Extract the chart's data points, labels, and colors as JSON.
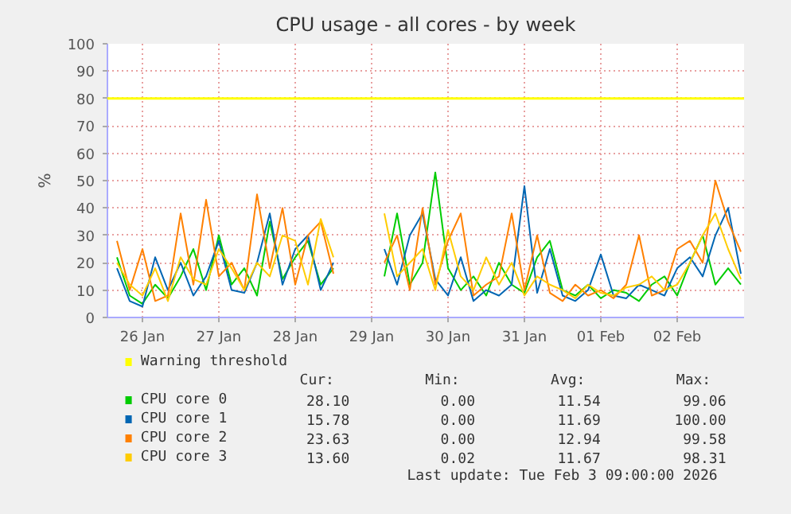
{
  "chart_data": {
    "type": "line",
    "title": "CPU usage - all cores - by week",
    "ylabel": "%",
    "x": [
      "2026-01-26T04:00",
      "2026-01-26T08:00",
      "2026-01-26T12:00",
      "2026-01-26T16:00",
      "2026-01-26T20:00",
      "2026-01-27T00:00",
      "2026-01-27T04:00",
      "2026-01-27T08:00",
      "2026-01-27T12:00",
      "2026-01-27T16:00",
      "2026-01-27T20:00",
      "2026-01-28T00:00",
      "2026-01-28T04:00",
      "2026-01-28T08:00",
      "2026-01-28T12:00",
      "2026-01-28T16:00",
      "2026-01-28T20:00",
      "2026-01-29T00:00",
      "2026-01-29T04:00",
      "2026-01-29T08:00",
      "2026-01-29T12:00",
      "2026-01-29T16:00",
      "2026-01-29T20:00",
      "2026-01-30T00:00",
      "2026-01-30T04:00",
      "2026-01-30T08:00",
      "2026-01-30T12:00",
      "2026-01-30T16:00",
      "2026-01-30T20:00",
      "2026-01-31T00:00",
      "2026-01-31T04:00",
      "2026-01-31T08:00",
      "2026-01-31T12:00",
      "2026-01-31T16:00",
      "2026-01-31T20:00",
      "2026-02-01T00:00",
      "2026-02-01T04:00",
      "2026-02-01T08:00",
      "2026-02-01T12:00",
      "2026-02-01T16:00",
      "2026-02-01T20:00",
      "2026-02-02T00:00",
      "2026-02-02T04:00",
      "2026-02-02T08:00",
      "2026-02-02T12:00",
      "2026-02-02T16:00",
      "2026-02-02T20:00",
      "2026-02-03T00:00",
      "2026-02-03T04:00",
      "2026-02-03T08:00"
    ],
    "series": [
      {
        "name": "CPU core 0",
        "color": "#00cc00",
        "values": [
          22,
          8,
          5,
          12,
          7,
          15,
          25,
          10,
          30,
          12,
          18,
          8,
          35,
          14,
          22,
          28,
          12,
          18,
          null,
          null,
          null,
          15,
          38,
          12,
          20,
          53,
          18,
          10,
          15,
          8,
          20,
          12,
          9,
          22,
          28,
          10,
          8,
          12,
          7,
          10,
          9,
          6,
          12,
          15,
          8,
          20,
          30,
          12,
          18,
          12
        ]
      },
      {
        "name": "CPU core 1",
        "color": "#0066b3",
        "values": [
          18,
          6,
          4,
          22,
          10,
          20,
          8,
          15,
          28,
          10,
          9,
          20,
          38,
          12,
          25,
          30,
          10,
          20,
          null,
          null,
          null,
          25,
          12,
          30,
          38,
          14,
          8,
          22,
          6,
          10,
          8,
          12,
          48,
          9,
          25,
          8,
          6,
          10,
          23,
          8,
          7,
          12,
          10,
          8,
          18,
          22,
          15,
          30,
          40,
          16
        ]
      },
      {
        "name": "CPU core 2",
        "color": "#ff8000",
        "values": [
          28,
          10,
          25,
          6,
          8,
          38,
          12,
          43,
          15,
          20,
          10,
          45,
          18,
          40,
          12,
          30,
          35,
          16,
          null,
          null,
          null,
          20,
          30,
          10,
          40,
          12,
          28,
          38,
          8,
          12,
          15,
          38,
          10,
          30,
          9,
          6,
          12,
          8,
          10,
          7,
          12,
          30,
          8,
          10,
          25,
          28,
          20,
          50,
          35,
          24
        ]
      },
      {
        "name": "CPU core 3",
        "color": "#ffcc00",
        "values": [
          20,
          12,
          8,
          18,
          6,
          22,
          14,
          12,
          25,
          18,
          10,
          20,
          15,
          30,
          28,
          12,
          36,
          22,
          null,
          null,
          null,
          38,
          15,
          20,
          25,
          10,
          32,
          15,
          10,
          22,
          12,
          20,
          8,
          15,
          12,
          10,
          7,
          12,
          9,
          8,
          11,
          12,
          15,
          10,
          12,
          20,
          30,
          38,
          25,
          14
        ]
      }
    ],
    "xlim": [
      "2026-01-26T01:00",
      "2026-02-03T09:00"
    ],
    "xticks": [
      {
        "value": "2026-01-26T12:00",
        "label": "26 Jan"
      },
      {
        "value": "2026-01-27T12:00",
        "label": "27 Jan"
      },
      {
        "value": "2026-01-28T12:00",
        "label": "28 Jan"
      },
      {
        "value": "2026-01-29T12:00",
        "label": "29 Jan"
      },
      {
        "value": "2026-01-30T12:00",
        "label": "30 Jan"
      },
      {
        "value": "2026-01-31T12:00",
        "label": "31 Jan"
      },
      {
        "value": "2026-02-01T12:00",
        "label": "01 Feb"
      },
      {
        "value": "2026-02-02T12:00",
        "label": "02 Feb"
      }
    ],
    "ylim": [
      0,
      100
    ],
    "yticks": [
      0,
      10,
      20,
      30,
      40,
      50,
      60,
      70,
      80,
      90,
      100
    ],
    "grid": true,
    "legend": "bottom",
    "ref_lines": [
      {
        "axis": "y",
        "value": 80,
        "label": "Warning threshold",
        "color": "#ffff00"
      }
    ],
    "annotations": [
      "Cur:",
      "Min:",
      "Avg:",
      "Max:",
      "28.10",
      "0.00",
      "11.54",
      "99.06",
      "15.78",
      "0.00",
      "11.69",
      "100.00",
      "23.63",
      "0.00",
      "12.94",
      "99.58",
      "13.60",
      "0.02",
      "11.67",
      "98.31",
      "Last update: Tue Feb  3 09:00:00 2026"
    ]
  }
}
